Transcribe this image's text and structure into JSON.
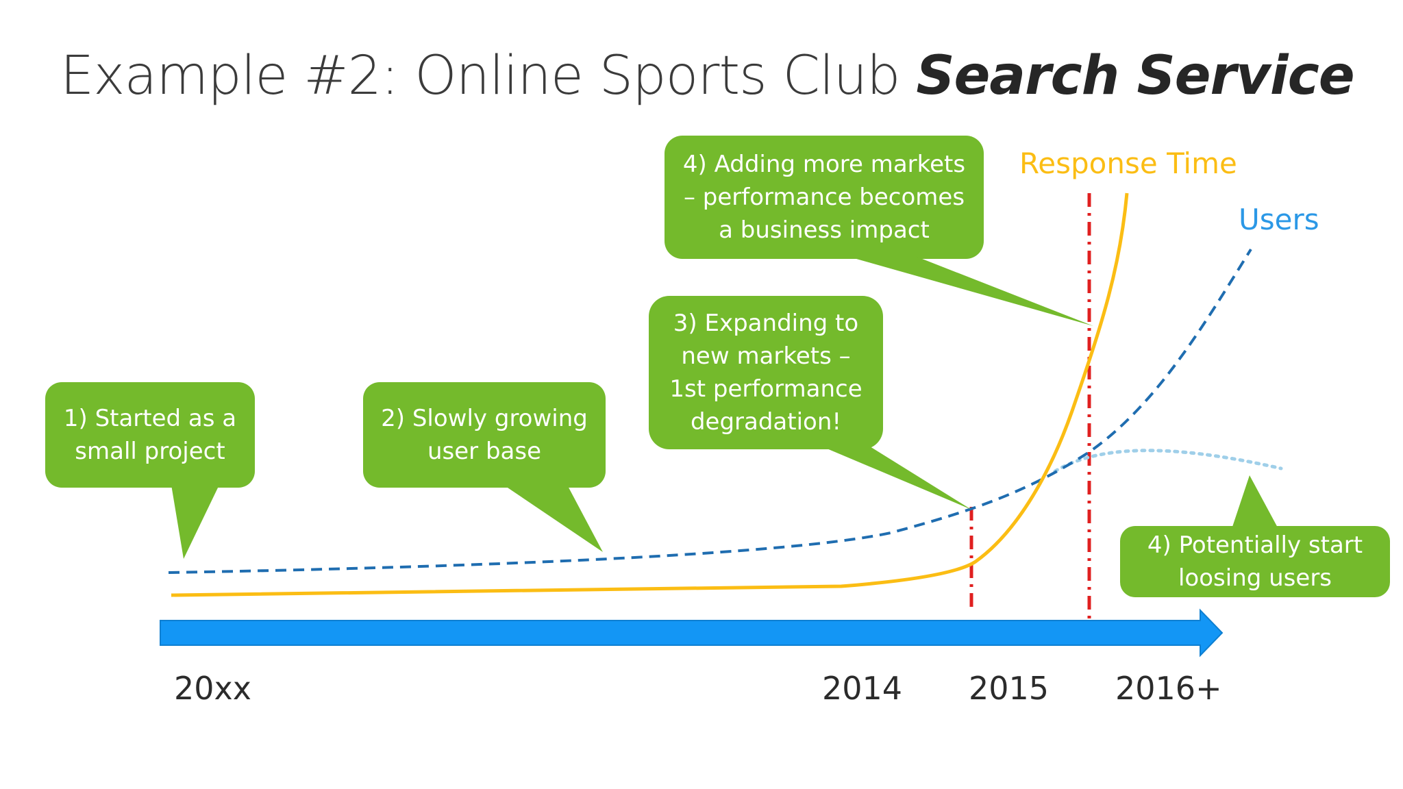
{
  "title": {
    "prefix": "Example #2: Online Sports Club ",
    "emphasis": "Search Service"
  },
  "legend": {
    "response_time": "Response Time",
    "users": "Users"
  },
  "timeline": {
    "labels": [
      "20xx",
      "2014",
      "2015",
      "2016+"
    ]
  },
  "callouts": [
    {
      "id": "c1",
      "lines": [
        "1) Started as a",
        "small project"
      ]
    },
    {
      "id": "c2",
      "lines": [
        "2) Slowly growing",
        "user base"
      ]
    },
    {
      "id": "c3",
      "lines": [
        "3) Expanding to",
        "new markets –",
        "1st performance",
        "degradation!"
      ]
    },
    {
      "id": "c4",
      "lines": [
        "4) Adding more markets",
        "– performance becomes",
        "a business impact"
      ]
    },
    {
      "id": "c5",
      "lines": [
        "4) Potentially start",
        "loosing users"
      ]
    }
  ],
  "colors": {
    "callout": "#74ba2c",
    "response_time": "#fbbd14",
    "users": "#1f6db0",
    "users_projection": "#9fcfe9",
    "legend_users": "#2b98e6",
    "marker": "#e02020",
    "arrow": "#1396f5"
  }
}
